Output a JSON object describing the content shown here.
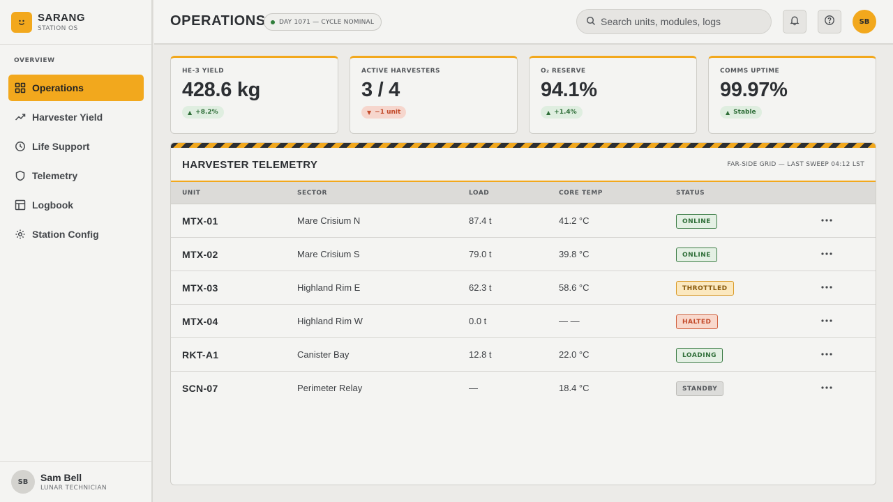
{
  "brand": {
    "name": "SARANG",
    "subtitle": "STATION OS",
    "logo_glyph": ":)"
  },
  "sidebar": {
    "section_label": "OVERVIEW",
    "items": [
      {
        "label": "Operations",
        "icon": "grid-icon",
        "active": true
      },
      {
        "label": "Harvester Yield",
        "icon": "trend-icon",
        "active": false
      },
      {
        "label": "Life Support",
        "icon": "clock-icon",
        "active": false
      },
      {
        "label": "Telemetry",
        "icon": "shield-icon",
        "active": false
      },
      {
        "label": "Logbook",
        "icon": "table-icon",
        "active": false
      },
      {
        "label": "Station Config",
        "icon": "gear-icon",
        "active": false
      }
    ],
    "user": {
      "initials": "SB",
      "name": "Sam Bell",
      "role": "LUNAR TECHNICIAN"
    }
  },
  "header": {
    "title": "OPERATIONS",
    "cycle_status": "DAY 1071 — CYCLE NOMINAL",
    "search_placeholder": "Search units, modules, logs",
    "avatar_initials": "SB"
  },
  "kpis": [
    {
      "label": "HE-3 YIELD",
      "value": "428.6 kg",
      "delta": "+8.2%",
      "direction": "up"
    },
    {
      "label": "ACTIVE HARVESTERS",
      "value": "3 / 4",
      "delta": "−1 unit",
      "direction": "down"
    },
    {
      "label": "O₂ RESERVE",
      "value": "94.1%",
      "delta": "+1.4%",
      "direction": "up"
    },
    {
      "label": "COMMS UPTIME",
      "value": "99.97%",
      "delta": "Stable",
      "direction": "up"
    }
  ],
  "telemetry": {
    "title": "HARVESTER TELEMETRY",
    "meta": "FAR-SIDE GRID — LAST SWEEP 04:12 LST",
    "columns": {
      "unit": "UNIT",
      "sector": "SECTOR",
      "load": "LOAD",
      "core_temp": "CORE TEMP",
      "status": "STATUS"
    },
    "rows": [
      {
        "unit": "MTX-01",
        "sector": "Mare Crisium N",
        "load": "87.4 t",
        "core_temp": "41.2 °C",
        "status": "ONLINE",
        "status_kind": "online"
      },
      {
        "unit": "MTX-02",
        "sector": "Mare Crisium S",
        "load": "79.0 t",
        "core_temp": "39.8 °C",
        "status": "ONLINE",
        "status_kind": "online"
      },
      {
        "unit": "MTX-03",
        "sector": "Highland Rim E",
        "load": "62.3 t",
        "core_temp": "58.6 °C",
        "status": "THROTTLED",
        "status_kind": "throttled"
      },
      {
        "unit": "MTX-04",
        "sector": "Highland Rim W",
        "load": "0.0 t",
        "core_temp": "— —",
        "status": "HALTED",
        "status_kind": "halted"
      },
      {
        "unit": "RKT-A1",
        "sector": "Canister Bay",
        "load": "12.8 t",
        "core_temp": "22.0 °C",
        "status": "LOADING",
        "status_kind": "loading"
      },
      {
        "unit": "SCN-07",
        "sector": "Perimeter Relay",
        "load": "—",
        "core_temp": "18.4 °C",
        "status": "STANDBY",
        "status_kind": "standby"
      }
    ]
  },
  "colors": {
    "accent": "#f2a81d",
    "online": "#2f6e38",
    "halted": "#c24a2a",
    "throttled": "#8a5a0c"
  }
}
